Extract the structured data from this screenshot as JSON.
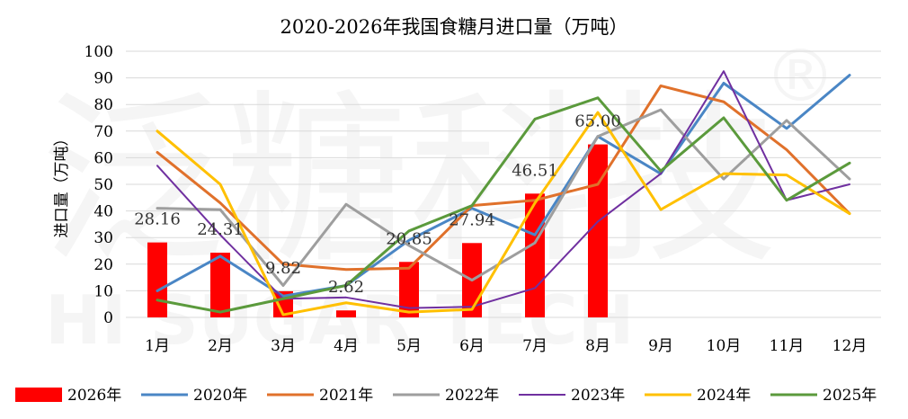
{
  "chart_data": {
    "type": "bar",
    "title": "2020-2026年我国食糖月进口量（万吨）",
    "ylabel": "进口量（万吨）",
    "xlabel": "",
    "ylim": [
      0,
      100
    ],
    "yticks": [
      0,
      10,
      20,
      30,
      40,
      50,
      60,
      70,
      80,
      90,
      100
    ],
    "grid": true,
    "legend_position": "bottom",
    "categories": [
      "1月",
      "2月",
      "3月",
      "4月",
      "5月",
      "6月",
      "7月",
      "8月",
      "9月",
      "10月",
      "11月",
      "12月"
    ],
    "bar_series": {
      "name": "2026年",
      "color": "#ff0000",
      "values": [
        28.16,
        24.31,
        9.82,
        2.62,
        20.85,
        27.94,
        46.51,
        65.0,
        null,
        null,
        null,
        null
      ],
      "labels": [
        "28.16",
        "24.31",
        "9.82",
        "2.62",
        "20.85",
        "27.94",
        "46.51",
        "65.00",
        "",
        "",
        "",
        ""
      ]
    },
    "line_series": [
      {
        "name": "2020年",
        "color": "#4a86c5",
        "width": 3,
        "values": [
          10,
          23,
          8,
          12,
          29,
          41,
          31,
          68,
          54,
          88,
          71,
          91
        ]
      },
      {
        "name": "2021年",
        "color": "#e0712b",
        "width": 3,
        "values": [
          62,
          43,
          20,
          18,
          18.5,
          42,
          44,
          50,
          87,
          81,
          63,
          39
        ]
      },
      {
        "name": "2022年",
        "color": "#9e9e9e",
        "width": 3,
        "values": [
          41,
          40.5,
          12,
          42.5,
          27,
          14,
          28,
          68,
          78,
          52,
          74,
          52
        ]
      },
      {
        "name": "2023年",
        "color": "#7030a0",
        "width": 2,
        "values": [
          57,
          31,
          7,
          7.5,
          3.5,
          4,
          11,
          36,
          54,
          92.5,
          44,
          50
        ]
      },
      {
        "name": "2024年",
        "color": "#ffc000",
        "width": 3,
        "values": [
          70,
          50,
          1,
          5.5,
          2,
          3,
          43,
          77,
          40.5,
          54,
          53.5,
          39
        ]
      },
      {
        "name": "2025年",
        "color": "#5b9a3c",
        "width": 3,
        "values": [
          6.5,
          2,
          7,
          12,
          32.5,
          42,
          74.5,
          82.5,
          55,
          75,
          44,
          58
        ]
      }
    ]
  },
  "watermark": {
    "big_text": "泛糖科技",
    "small_text": "HI SUGAR TECH",
    "mark": "®"
  }
}
